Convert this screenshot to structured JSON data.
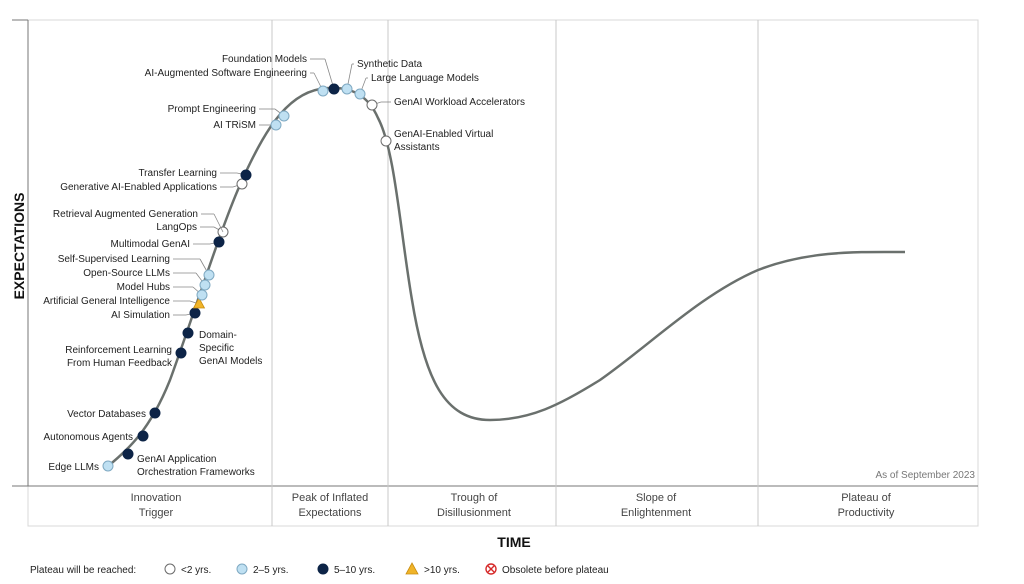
{
  "chart_data": {
    "type": "hype-cycle",
    "y_axis_title": "EXPECTATIONS",
    "x_axis_title": "TIME",
    "as_of": "As of September 2023",
    "phases": [
      {
        "key": "innovation",
        "lines": [
          "Innovation",
          "Trigger"
        ]
      },
      {
        "key": "peak",
        "lines": [
          "Peak of Inflated",
          "Expectations"
        ]
      },
      {
        "key": "trough",
        "lines": [
          "Trough of",
          "Disillusionment"
        ]
      },
      {
        "key": "slope",
        "lines": [
          "Slope of",
          "Enlightenment"
        ]
      },
      {
        "key": "plateau",
        "lines": [
          "Plateau of",
          "Productivity"
        ]
      }
    ],
    "legend": {
      "title": "Plateau will be reached:",
      "items": [
        {
          "key": "lt2",
          "label": "<2 yrs."
        },
        {
          "key": "2to5",
          "label": "2–5 yrs."
        },
        {
          "key": "5to10",
          "label": "5–10 yrs."
        },
        {
          "key": "gt10",
          "label": ">10 yrs."
        },
        {
          "key": "obsolete",
          "label": "Obsolete before plateau"
        }
      ]
    },
    "colors": {
      "lt2": "#ffffff",
      "2to5": "#bfe0f2",
      "5to10": "#0d2447",
      "gt10": "#f0b429",
      "obsolete": "#d62b2b",
      "curve": "#6a706d",
      "grid": "#c8c8c8"
    },
    "technologies": [
      {
        "name": "Edge LLMs",
        "category": "2to5"
      },
      {
        "name": "GenAI Application Orchestration Frameworks",
        "lines": [
          "GenAI Application",
          "Orchestration Frameworks"
        ],
        "category": "5to10"
      },
      {
        "name": "Autonomous Agents",
        "category": "5to10"
      },
      {
        "name": "Vector Databases",
        "category": "5to10"
      },
      {
        "name": "Reinforcement Learning From Human Feedback",
        "lines": [
          "Reinforcement Learning",
          "From Human Feedback"
        ],
        "category": "5to10"
      },
      {
        "name": "Domain-Specific GenAI Models",
        "lines": [
          "Domain-",
          "Specific",
          "GenAI Models"
        ],
        "category": "5to10"
      },
      {
        "name": "AI Simulation",
        "category": "5to10"
      },
      {
        "name": "Artificial General Intelligence",
        "category": "gt10"
      },
      {
        "name": "Model Hubs",
        "category": "2to5"
      },
      {
        "name": "Open-Source LLMs",
        "category": "2to5"
      },
      {
        "name": "Self-Supervised Learning",
        "category": "2to5"
      },
      {
        "name": "Multimodal GenAI",
        "category": "5to10"
      },
      {
        "name": "LangOps",
        "category": "lt2"
      },
      {
        "name": "Retrieval Augmented Generation",
        "category": "lt2"
      },
      {
        "name": "Generative AI-Enabled Applications",
        "category": "lt2"
      },
      {
        "name": "Transfer Learning",
        "category": "5to10"
      },
      {
        "name": "AI TRiSM",
        "category": "2to5"
      },
      {
        "name": "Prompt Engineering",
        "category": "2to5"
      },
      {
        "name": "AI-Augmented Software Engineering",
        "category": "2to5"
      },
      {
        "name": "Foundation Models",
        "category": "5to10"
      },
      {
        "name": "Synthetic Data",
        "category": "2to5"
      },
      {
        "name": "Large Language Models",
        "category": "2to5"
      },
      {
        "name": "GenAI Workload Accelerators",
        "category": "lt2"
      },
      {
        "name": "GenAI-Enabled Virtual Assistants",
        "lines": [
          "GenAI-Enabled Virtual",
          "Assistants"
        ],
        "category": "lt2"
      }
    ]
  }
}
